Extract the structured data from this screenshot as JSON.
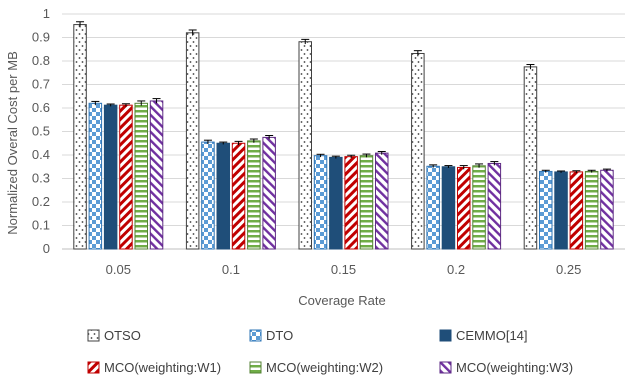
{
  "chart_data": {
    "type": "bar",
    "title": "",
    "xlabel": "Coverage Rate",
    "ylabel": "Normalized Overal Cost per MB",
    "ylim": [
      0,
      1
    ],
    "yticks": [
      "0",
      "0.1",
      "0.2",
      "0.3",
      "0.4",
      "0.5",
      "0.6",
      "0.7",
      "0.8",
      "0.9",
      "1"
    ],
    "grid": true,
    "legend_position": "bottom",
    "categories": [
      "0.05",
      "0.1",
      "0.15",
      "0.2",
      "0.25"
    ],
    "series": [
      {
        "name": "OTSO",
        "pattern": "dots",
        "color": "#ffffff",
        "stroke": "#404040",
        "values": [
          0.955,
          0.92,
          0.882,
          0.832,
          0.775
        ],
        "errors": [
          0.012,
          0.012,
          0.01,
          0.012,
          0.01
        ]
      },
      {
        "name": "DTO",
        "pattern": "checker",
        "color": "#5b9bd5",
        "stroke": "#2e75b6",
        "values": [
          0.62,
          0.455,
          0.397,
          0.352,
          0.33
        ],
        "errors": [
          0.008,
          0.008,
          0.006,
          0.006,
          0.005
        ]
      },
      {
        "name": "CEMMO[14]",
        "pattern": "solid",
        "color": "#1f4e79",
        "stroke": "#1f4e79",
        "values": [
          0.612,
          0.45,
          0.39,
          0.35,
          0.328
        ],
        "errors": [
          0.005,
          0.005,
          0.005,
          0.005,
          0.004
        ]
      },
      {
        "name": "MCO(weighting:W1)",
        "pattern": "diag-red",
        "color": "#c00000",
        "stroke": "#c00000",
        "values": [
          0.612,
          0.45,
          0.393,
          0.347,
          0.328
        ],
        "errors": [
          0.006,
          0.008,
          0.006,
          0.008,
          0.005
        ]
      },
      {
        "name": "MCO(weighting:W2)",
        "pattern": "hstripe-green",
        "color": "#70ad47",
        "stroke": "#548235",
        "values": [
          0.62,
          0.46,
          0.397,
          0.354,
          0.33
        ],
        "errors": [
          0.01,
          0.008,
          0.007,
          0.008,
          0.005
        ]
      },
      {
        "name": "MCO(weighting:W3)",
        "pattern": "diag-purple",
        "color": "#7030a0",
        "stroke": "#5e2a84",
        "values": [
          0.63,
          0.475,
          0.408,
          0.364,
          0.335
        ],
        "errors": [
          0.01,
          0.008,
          0.007,
          0.008,
          0.005
        ]
      }
    ]
  }
}
